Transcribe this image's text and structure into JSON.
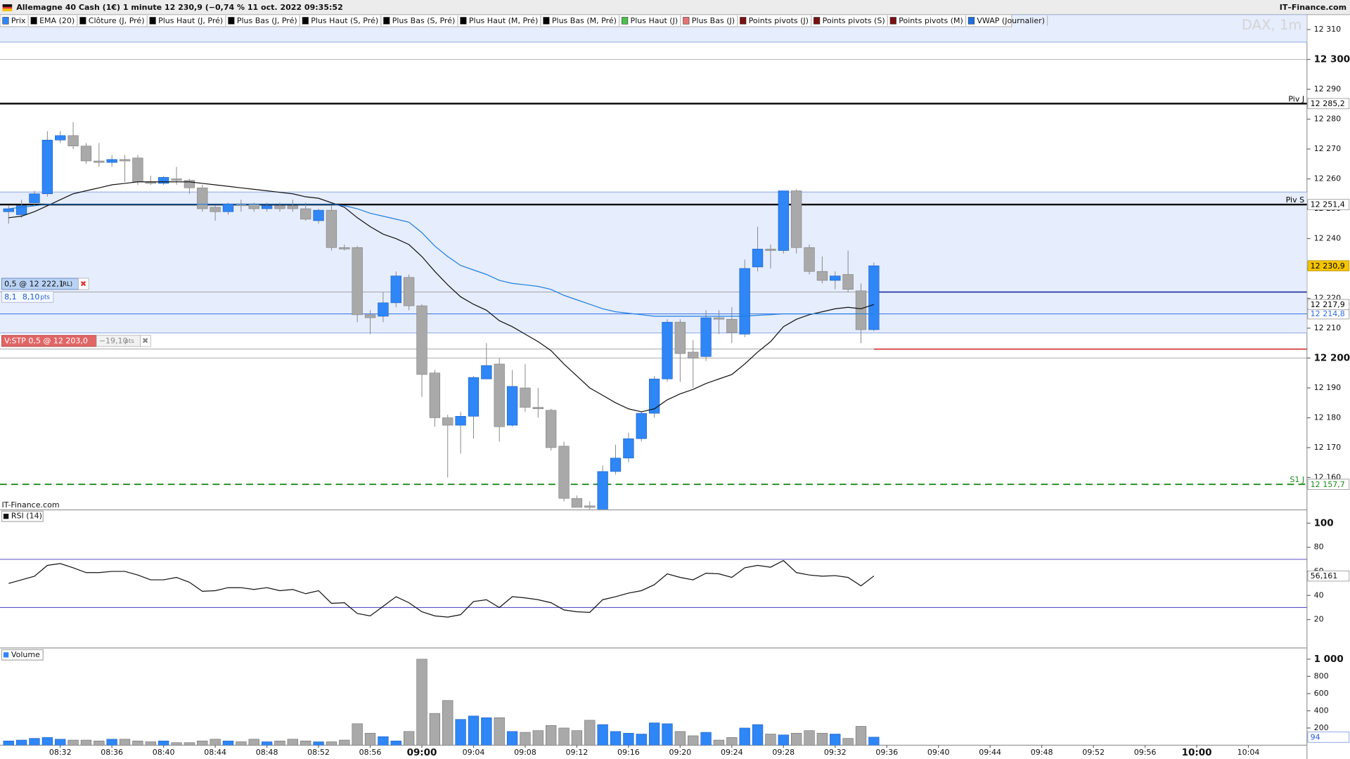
{
  "header": {
    "title": "Allemagne 40 Cash (1€) 1 minute 12 230,9 (−0,74 % 11 oct. 2022 09:35:52",
    "brand": "IT–Finance.com"
  },
  "legend": [
    {
      "name": "Prix",
      "color": "#2e86f7"
    },
    {
      "name": "EMA (20)",
      "color": "#000000"
    },
    {
      "name": "Clôture (J, Pré)",
      "color": "#000000"
    },
    {
      "name": "Plus Haut (J, Pré)",
      "color": "#000000"
    },
    {
      "name": "Plus Bas (J, Pré)",
      "color": "#000000"
    },
    {
      "name": "Plus Haut (S, Pré)",
      "color": "#000000"
    },
    {
      "name": "Plus Bas (S, Pré)",
      "color": "#000000"
    },
    {
      "name": "Plus Haut (M, Pré)",
      "color": "#000000"
    },
    {
      "name": "Plus Bas (M, Pré)",
      "color": "#000000"
    },
    {
      "name": "Plus Haut (J)",
      "color": "#4cc24c"
    },
    {
      "name": "Plus Bas (J)",
      "color": "#e57373"
    },
    {
      "name": "Points pivots (J)",
      "color": "#7a1010"
    },
    {
      "name": "Points pivots (S)",
      "color": "#7a1010"
    },
    {
      "name": "Points pivots (M)",
      "color": "#7a1010"
    },
    {
      "name": "VWAP (Journalier)",
      "color": "#1e6fe0"
    }
  ],
  "watermark": "DAX, 1m",
  "chart_data": [
    {
      "type": "candlestick",
      "source": "IT-Finance.com",
      "x": [
        "08:28",
        "08:29",
        "08:30",
        "08:31",
        "08:32",
        "08:33",
        "08:34",
        "08:35",
        "08:36",
        "08:37",
        "08:38",
        "08:39",
        "08:40",
        "08:41",
        "08:42",
        "08:43",
        "08:44",
        "08:45",
        "08:46",
        "08:47",
        "08:48",
        "08:49",
        "08:50",
        "08:51",
        "08:52",
        "08:53",
        "08:54",
        "08:55",
        "08:56",
        "08:57",
        "08:58",
        "08:59",
        "09:00",
        "09:01",
        "09:02",
        "09:03",
        "09:04",
        "09:05",
        "09:06",
        "09:07",
        "09:08",
        "09:09",
        "09:10",
        "09:11",
        "09:12",
        "09:13",
        "09:14",
        "09:15",
        "09:16",
        "09:17",
        "09:18",
        "09:19",
        "09:20",
        "09:21",
        "09:22",
        "09:23",
        "09:24",
        "09:25",
        "09:26",
        "09:27",
        "09:28",
        "09:29",
        "09:30",
        "09:31",
        "09:32",
        "09:33",
        "09:34",
        "09:35"
      ],
      "open": [
        12249,
        12248,
        12252,
        12255,
        12273,
        12274.5,
        12271,
        12266,
        12265.5,
        12266.5,
        12267,
        12259,
        12258.5,
        12260,
        12259.5,
        12257,
        12250.5,
        12249,
        12251.5,
        12251.5,
        12250,
        12251,
        12251,
        12250,
        12246,
        12249.5,
        12237,
        12237,
        12214.5,
        12214,
        12218.5,
        12227,
        12217.5,
        12195,
        12180,
        12177.5,
        12180.5,
        12193,
        12198,
        12177.5,
        12190,
        12183.5,
        12182.5,
        12170.5,
        12153,
        12150.5,
        12149,
        12162,
        12166.5,
        12173,
        12181.5,
        12193,
        12212,
        12202,
        12200.5,
        12213.5,
        12213,
        12208,
        12230.5,
        12236.5,
        12236,
        12256,
        12237,
        12229,
        12226,
        12228,
        12222.5,
        12209.5
      ],
      "high": [
        12251,
        12253,
        12256,
        12276,
        12276,
        12279,
        12272,
        12272,
        12268,
        12268,
        12268,
        12261,
        12261,
        12264,
        12260,
        12258,
        12251,
        12252,
        12253,
        12252,
        12252,
        12252,
        12253,
        12252,
        12250,
        12251,
        12238,
        12237.5,
        12216,
        12222,
        12229,
        12228,
        12218,
        12196,
        12181,
        12182,
        12194,
        12205,
        12200,
        12196,
        12198,
        12190,
        12183,
        12172,
        12154,
        12152,
        12164,
        12171,
        12175,
        12182,
        12194,
        12213,
        12213,
        12206,
        12216,
        12216,
        12217,
        12233,
        12244,
        12238,
        12256,
        12256.5,
        12238,
        12234,
        12229,
        12236,
        12225,
        12232
      ],
      "low": [
        12245,
        12247,
        12251,
        12254,
        12272,
        12270,
        12265,
        12264,
        12264,
        12259,
        12258,
        12258,
        12258,
        12258,
        12255,
        12249,
        12246,
        12248,
        12249,
        12249,
        12249,
        12249,
        12249,
        12246,
        12245,
        12236,
        12236,
        12212,
        12208,
        12212,
        12217,
        12216,
        12187,
        12177,
        12160,
        12168,
        12173,
        12193,
        12172,
        12177,
        12182,
        12180,
        12169,
        12152,
        12150,
        12149,
        12148,
        12161,
        12165,
        12172,
        12180,
        12192,
        12192,
        12190,
        12199,
        12208,
        12205,
        12207,
        12229,
        12230,
        12235,
        12235,
        12228,
        12225,
        12223,
        12222,
        12205,
        12209
      ],
      "close": [
        12250,
        12251,
        12255,
        12273,
        12274.5,
        12271,
        12266,
        12265.5,
        12266.5,
        12266,
        12259,
        12258.5,
        12260.5,
        12259.5,
        12257,
        12250,
        12249,
        12251.5,
        12251,
        12250,
        12251,
        12250,
        12250,
        12246.5,
        12249.5,
        12237,
        12236.5,
        12214.5,
        12213.5,
        12218.5,
        12227.5,
        12217.5,
        12194.5,
        12180,
        12177.5,
        12180.5,
        12193.5,
        12197.5,
        12177,
        12190.5,
        12183.5,
        12183,
        12170,
        12153,
        12150,
        12150,
        12162,
        12166.5,
        12173,
        12181.5,
        12193,
        12212,
        12201.5,
        12200,
        12213.5,
        12213,
        12208.5,
        12230,
        12236.5,
        12236,
        12256,
        12237,
        12229,
        12226,
        12227.5,
        12223,
        12209.5,
        12230.9
      ],
      "up_color": "#2e86f7",
      "down_color": "#a9a9a9",
      "overlays": [
        {
          "color": "#111111",
          "values": [
            12247,
            12247.5,
            12249,
            12251,
            12253,
            12255,
            12256,
            12257,
            12258,
            12258.5,
            12259,
            12259,
            12259,
            12259,
            12259,
            12258.5,
            12258,
            12257.5,
            12257,
            12256.5,
            12256,
            12255.5,
            12255,
            12254,
            12253.5,
            12252,
            12250.5,
            12247,
            12244,
            12241.5,
            12240,
            12238,
            12234,
            12229,
            12224.5,
            12220.5,
            12218,
            12216,
            12212.5,
            12210.5,
            12208,
            12205.5,
            12202.5,
            12198,
            12194,
            12190,
            12187.5,
            12185,
            12183,
            12182,
            12183,
            12186,
            12188,
            12189.5,
            12191.5,
            12193,
            12194.5,
            12198,
            12202,
            12205.5,
            12210.5,
            12213,
            12214.5,
            12215.5,
            12216.5,
            12217,
            12216.5,
            12217.9
          ]
        },
        {
          "color": "#1e7fe0",
          "values": [
            12250,
            12250.5,
            12251,
            12251.5,
            12251.5,
            12251.5,
            12251.5,
            12251.5,
            12251.5,
            12251.5,
            12251.5,
            12251.5,
            12251.5,
            12251.5,
            12251.5,
            12251.5,
            12251.5,
            12251.5,
            12251.5,
            12251.5,
            12251.5,
            12251.5,
            12251.5,
            12251.5,
            12251.5,
            12251.5,
            12251,
            12250,
            12248.5,
            12247.5,
            12246.5,
            12245.5,
            12242,
            12237.5,
            12234,
            12231,
            12229.5,
            12228,
            12226,
            12225,
            12224.5,
            12224,
            12223,
            12221,
            12219.5,
            12218,
            12216.5,
            12215.5,
            12215,
            12214.5,
            12214,
            12214,
            12214,
            12214,
            12214,
            12214,
            12214,
            12214,
            12214.3,
            12214.5,
            12214.8,
            12214.8,
            12214.8,
            12214.8,
            12214.8,
            12214.8,
            12214.8,
            12214.8
          ]
        }
      ],
      "xlim": [
        "08:27:20",
        "10:08:32"
      ],
      "ylim": [
        12149.3,
        12315
      ],
      "yticks": [
        {
          "value": 12310,
          "label": "12 310"
        },
        {
          "value": 12300,
          "label": "12 300"
        },
        {
          "value": 12290,
          "label": "12 290"
        },
        {
          "value": 12280,
          "label": "12 280"
        },
        {
          "value": 12270,
          "label": "12 270"
        },
        {
          "value": 12260,
          "label": "12 260"
        },
        {
          "value": 12250,
          "label": "12 250"
        },
        {
          "value": 12240,
          "label": "12 240"
        },
        {
          "value": 12230,
          "label": "12 230"
        },
        {
          "value": 12220,
          "label": "12 220"
        },
        {
          "value": 12210,
          "label": "12 210"
        },
        {
          "value": 12200,
          "label": "12 200"
        },
        {
          "value": 12190,
          "label": "12 190"
        },
        {
          "value": 12180,
          "label": "12 180"
        },
        {
          "value": 12170,
          "label": "12 170"
        },
        {
          "value": 12160,
          "label": "12 160"
        }
      ],
      "bands": [
        {
          "from": 12305.8,
          "to": 12315,
          "color": "#e6edfc"
        },
        {
          "from": 12208.4,
          "to": 12255.6,
          "color": "#e6edfc"
        }
      ],
      "levels": [
        {
          "name": "Piv J",
          "value": 12285.2,
          "label": "12 285,2",
          "color": "#000000",
          "style": "thick"
        },
        {
          "name": "Piv S",
          "value": 12251.4,
          "label": "12 251,4",
          "color": "#000000",
          "style": "thick"
        },
        {
          "name": "S1 J",
          "value": 12157.7,
          "label": "12 157,7",
          "color": "#1a8a1a",
          "style": "dashed"
        },
        {
          "value": 12214.8,
          "label": "12 214,8",
          "color": "#2f6fe0",
          "style": "thin"
        },
        {
          "value": 12217.9,
          "label": "12 217,9",
          "color": "#000000",
          "style": "none"
        },
        {
          "value": 12230.9,
          "label": "12 230,9",
          "color": "#000000",
          "style": "none",
          "badge": "#f5c400"
        }
      ],
      "orders": [
        {
          "value": 12222.1,
          "color": "#1a2a9a",
          "box": "#b9d3f5",
          "text": "0,5 @ 12 222,1",
          "tag": "(RL)",
          "sub": [
            "8,1",
            "8,10"
          ],
          "unit": "pts"
        },
        {
          "value": 12203,
          "color": "#d33b3b",
          "box": "#e06666",
          "text": "V:STP 0,5 @ 12 203,0",
          "pnl": "−19,10",
          "unit": "pts"
        }
      ]
    },
    {
      "type": "line",
      "title": "RSI (14)",
      "color": "#111111",
      "x": [
        "08:28",
        "08:29",
        "08:30",
        "08:31",
        "08:32",
        "08:33",
        "08:34",
        "08:35",
        "08:36",
        "08:37",
        "08:38",
        "08:39",
        "08:40",
        "08:41",
        "08:42",
        "08:43",
        "08:44",
        "08:45",
        "08:46",
        "08:47",
        "08:48",
        "08:49",
        "08:50",
        "08:51",
        "08:52",
        "08:53",
        "08:54",
        "08:55",
        "08:56",
        "08:57",
        "08:58",
        "08:59",
        "09:00",
        "09:01",
        "09:02",
        "09:03",
        "09:04",
        "09:05",
        "09:06",
        "09:07",
        "09:08",
        "09:09",
        "09:10",
        "09:11",
        "09:12",
        "09:13",
        "09:14",
        "09:15",
        "09:16",
        "09:17",
        "09:18",
        "09:19",
        "09:20",
        "09:21",
        "09:22",
        "09:23",
        "09:24",
        "09:25",
        "09:26",
        "09:27",
        "09:28",
        "09:29",
        "09:30",
        "09:31",
        "09:32",
        "09:33",
        "09:34",
        "09:35"
      ],
      "values": [
        50,
        53,
        56,
        65,
        66.5,
        63,
        59,
        59,
        60,
        60,
        57,
        53,
        53,
        55,
        51,
        43.5,
        44,
        46.5,
        46.5,
        45,
        46.5,
        44,
        45,
        41.5,
        44,
        33.5,
        34,
        25,
        23,
        31,
        39,
        34,
        26.5,
        23,
        22,
        24,
        35,
        36.5,
        30,
        39,
        38,
        36.5,
        34,
        28,
        26.5,
        26,
        36.5,
        39,
        42,
        44,
        49,
        58,
        55,
        53,
        58.5,
        58,
        55,
        63,
        65,
        63.5,
        69,
        59,
        57,
        56,
        56.5,
        55,
        48,
        56.161
      ],
      "last_label": "56,161",
      "levels": [
        70,
        30
      ],
      "level_color": "#5a52c8",
      "xlim": [
        "08:27:20",
        "10:08:32"
      ],
      "ylim": [
        -2.9,
        110.7
      ],
      "yticks": [
        100,
        80,
        60,
        40,
        20
      ]
    },
    {
      "type": "volume",
      "title": "Volume",
      "up_color": "#2e86f7",
      "down_color": "#a9a9a9",
      "x": [
        "08:28",
        "08:29",
        "08:30",
        "08:31",
        "08:32",
        "08:33",
        "08:34",
        "08:35",
        "08:36",
        "08:37",
        "08:38",
        "08:39",
        "08:40",
        "08:41",
        "08:42",
        "08:43",
        "08:44",
        "08:45",
        "08:46",
        "08:47",
        "08:48",
        "08:49",
        "08:50",
        "08:51",
        "08:52",
        "08:53",
        "08:54",
        "08:55",
        "08:56",
        "08:57",
        "08:58",
        "08:59",
        "09:00",
        "09:01",
        "09:02",
        "09:03",
        "09:04",
        "09:05",
        "09:06",
        "09:07",
        "09:08",
        "09:09",
        "09:10",
        "09:11",
        "09:12",
        "09:13",
        "09:14",
        "09:15",
        "09:16",
        "09:17",
        "09:18",
        "09:19",
        "09:20",
        "09:21",
        "09:22",
        "09:23",
        "09:24",
        "09:25",
        "09:26",
        "09:27",
        "09:28",
        "09:29",
        "09:30",
        "09:31",
        "09:32",
        "09:33",
        "09:34",
        "09:35"
      ],
      "values": [
        50,
        60,
        80,
        90,
        70,
        60,
        60,
        50,
        70,
        70,
        50,
        40,
        50,
        30,
        30,
        50,
        70,
        50,
        40,
        70,
        40,
        50,
        70,
        50,
        40,
        40,
        60,
        250,
        140,
        100,
        50,
        160,
        1000,
        370,
        520,
        300,
        340,
        320,
        320,
        160,
        150,
        170,
        230,
        200,
        170,
        290,
        240,
        160,
        140,
        130,
        260,
        250,
        160,
        110,
        150,
        60,
        90,
        200,
        240,
        130,
        120,
        140,
        170,
        140,
        130,
        80,
        220,
        94
      ],
      "xlim": [
        "08:27:20",
        "10:08:32"
      ],
      "ylim": [
        0,
        1110
      ],
      "yticks": [
        {
          "value": 1000,
          "label": "1 000"
        },
        800,
        600,
        400,
        200
      ],
      "xticks": [
        "08:32",
        "08:36",
        "08:40",
        "08:44",
        "08:48",
        "08:52",
        "08:56",
        "09:00",
        "09:04",
        "09:08",
        "09:12",
        "09:16",
        "09:20",
        "09:24",
        "09:28",
        "09:32",
        "09:36",
        "09:40",
        "09:44",
        "09:48",
        "09:52",
        "09:56",
        "10:00",
        "10:04"
      ]
    }
  ]
}
